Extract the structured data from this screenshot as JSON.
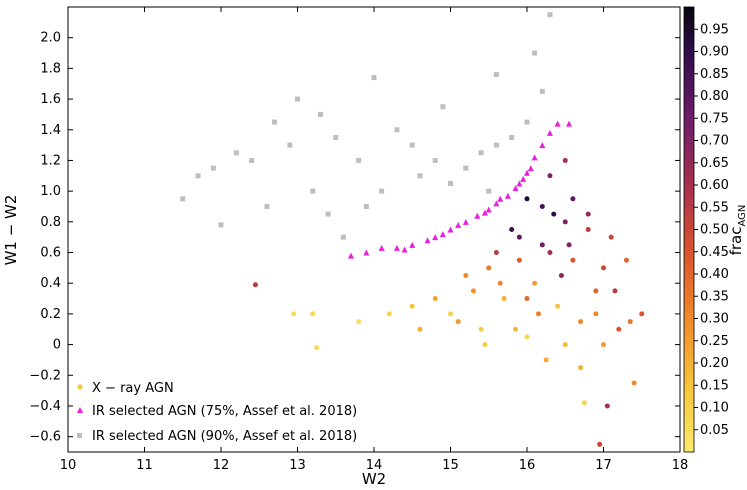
{
  "chart_data": {
    "type": "scatter",
    "xlabel": "W2",
    "ylabel": "W1 − W2",
    "xlim": [
      10,
      18
    ],
    "ylim": [
      -0.7,
      2.2
    ],
    "x_ticks": [
      10,
      11,
      12,
      13,
      14,
      15,
      16,
      17,
      18
    ],
    "y_ticks": [
      -0.6,
      -0.4,
      -0.2,
      0,
      0.2,
      0.4,
      0.6,
      0.8,
      1.0,
      1.2,
      1.4,
      1.6,
      1.8,
      2.0
    ],
    "x_tick_labels": [
      "10",
      "11",
      "12",
      "13",
      "14",
      "15",
      "16",
      "17",
      "18"
    ],
    "y_tick_labels": [
      "−0.6",
      "−0.4",
      "−0.2",
      "0",
      "0.2",
      "0.4",
      "0.6",
      "0.8",
      "1.0",
      "1.2",
      "1.4",
      "1.6",
      "1.8",
      "2.0"
    ],
    "grid": false,
    "legend_position": "lower-left",
    "colorbar": {
      "label": "frac_AGN",
      "label_main": "frac",
      "label_sub": "AGN",
      "ticks": [
        0.05,
        0.1,
        0.15,
        0.2,
        0.25,
        0.3,
        0.35,
        0.4,
        0.45,
        0.5,
        0.55,
        0.6,
        0.65,
        0.7,
        0.75,
        0.8,
        0.85,
        0.9,
        0.95
      ],
      "tick_labels": [
        "0.05",
        "0.10",
        "0.15",
        "0.20",
        "0.25",
        "0.30",
        "0.35",
        "0.40",
        "0.45",
        "0.50",
        "0.55",
        "0.60",
        "0.65",
        "0.70",
        "0.75",
        "0.80",
        "0.85",
        "0.90",
        "0.95"
      ],
      "range": [
        0.0,
        1.0
      ],
      "colormap": "inferno_r"
    },
    "series": [
      {
        "name": "X − ray AGN",
        "marker": "circle",
        "color": "#f0c040",
        "color_by": "frac_AGN",
        "points": [
          [
            16.0,
            0.95,
            0.93
          ],
          [
            16.2,
            0.9,
            0.85
          ],
          [
            16.5,
            0.8,
            0.7
          ],
          [
            16.8,
            0.75,
            0.55
          ],
          [
            15.9,
            0.7,
            0.8
          ],
          [
            16.3,
            0.6,
            0.6
          ],
          [
            16.6,
            0.55,
            0.45
          ],
          [
            17.0,
            0.5,
            0.5
          ],
          [
            15.5,
            0.5,
            0.35
          ],
          [
            15.2,
            0.45,
            0.3
          ],
          [
            16.1,
            0.4,
            0.25
          ],
          [
            16.9,
            0.35,
            0.4
          ],
          [
            15.7,
            0.3,
            0.2
          ],
          [
            16.4,
            0.25,
            0.15
          ],
          [
            15.0,
            0.2,
            0.1
          ],
          [
            16.7,
            0.15,
            0.3
          ],
          [
            15.4,
            0.1,
            0.12
          ],
          [
            16.0,
            0.05,
            0.08
          ],
          [
            16.5,
            0.0,
            0.18
          ],
          [
            17.2,
            0.1,
            0.45
          ],
          [
            15.8,
            0.75,
            0.88
          ],
          [
            16.2,
            0.65,
            0.75
          ],
          [
            15.3,
            0.35,
            0.28
          ],
          [
            14.8,
            0.3,
            0.22
          ],
          [
            14.5,
            0.25,
            0.15
          ],
          [
            14.2,
            0.2,
            0.1
          ],
          [
            13.8,
            0.15,
            0.05
          ],
          [
            13.2,
            0.2,
            0.08
          ],
          [
            12.95,
            0.2,
            0.06
          ],
          [
            13.25,
            -0.02,
            0.07
          ],
          [
            12.45,
            0.39,
            0.55
          ],
          [
            16.6,
            0.95,
            0.78
          ],
          [
            16.8,
            0.85,
            0.65
          ],
          [
            17.1,
            0.7,
            0.5
          ],
          [
            17.3,
            0.55,
            0.4
          ],
          [
            16.9,
            0.2,
            0.3
          ],
          [
            17.0,
            0.0,
            0.25
          ],
          [
            16.7,
            -0.15,
            0.2
          ],
          [
            16.95,
            -0.65,
            0.5
          ],
          [
            16.75,
            -0.38,
            0.1
          ],
          [
            17.05,
            -0.4,
            0.6
          ],
          [
            17.4,
            -0.25,
            0.3
          ],
          [
            17.5,
            0.2,
            0.45
          ],
          [
            16.3,
            1.1,
            0.72
          ],
          [
            16.5,
            1.2,
            0.6
          ],
          [
            15.6,
            0.6,
            0.55
          ],
          [
            15.9,
            0.55,
            0.42
          ],
          [
            16.0,
            0.3,
            0.38
          ],
          [
            15.1,
            0.15,
            0.26
          ],
          [
            14.6,
            0.1,
            0.2
          ],
          [
            16.45,
            0.45,
            0.66
          ],
          [
            16.15,
            0.2,
            0.33
          ],
          [
            15.85,
            0.1,
            0.18
          ],
          [
            15.45,
            0.0,
            0.12
          ],
          [
            16.25,
            -0.1,
            0.22
          ],
          [
            17.15,
            0.35,
            0.55
          ],
          [
            17.35,
            0.15,
            0.35
          ],
          [
            16.35,
            0.85,
            0.9
          ],
          [
            16.55,
            0.65,
            0.72
          ],
          [
            15.65,
            0.4,
            0.32
          ]
        ]
      },
      {
        "name": "IR selected AGN (75%, Assef et al. 2018)",
        "marker": "triangle",
        "color": "#e81ee0",
        "points": [
          [
            13.7,
            0.58
          ],
          [
            13.9,
            0.6
          ],
          [
            14.1,
            0.63
          ],
          [
            14.3,
            0.63
          ],
          [
            14.5,
            0.65
          ],
          [
            14.7,
            0.68
          ],
          [
            14.9,
            0.72
          ],
          [
            15.0,
            0.75
          ],
          [
            15.2,
            0.8
          ],
          [
            15.35,
            0.84
          ],
          [
            15.5,
            0.88
          ],
          [
            15.6,
            0.92
          ],
          [
            15.75,
            0.97
          ],
          [
            15.85,
            1.02
          ],
          [
            15.95,
            1.08
          ],
          [
            16.05,
            1.15
          ],
          [
            16.1,
            1.22
          ],
          [
            16.2,
            1.3
          ],
          [
            16.3,
            1.38
          ],
          [
            16.4,
            1.44
          ],
          [
            16.55,
            1.44
          ],
          [
            14.8,
            0.7
          ],
          [
            15.1,
            0.78
          ],
          [
            15.45,
            0.86
          ],
          [
            15.65,
            0.95
          ],
          [
            15.9,
            1.05
          ],
          [
            16.0,
            1.12
          ],
          [
            14.4,
            0.62
          ]
        ]
      },
      {
        "name": "IR selected AGN (90%, Assef et al. 2018)",
        "marker": "square",
        "color": "#c0bcc0",
        "points": [
          [
            11.5,
            0.95
          ],
          [
            11.7,
            1.1
          ],
          [
            11.9,
            1.15
          ],
          [
            12.0,
            0.78
          ],
          [
            12.2,
            1.25
          ],
          [
            12.4,
            1.2
          ],
          [
            12.7,
            1.45
          ],
          [
            12.9,
            1.3
          ],
          [
            13.0,
            1.6
          ],
          [
            13.2,
            1.0
          ],
          [
            13.3,
            1.5
          ],
          [
            13.5,
            1.35
          ],
          [
            13.6,
            0.7
          ],
          [
            13.8,
            1.2
          ],
          [
            14.0,
            1.74
          ],
          [
            14.1,
            1.0
          ],
          [
            14.3,
            1.4
          ],
          [
            14.5,
            1.3
          ],
          [
            14.6,
            1.1
          ],
          [
            14.8,
            1.2
          ],
          [
            15.0,
            1.05
          ],
          [
            15.2,
            1.15
          ],
          [
            15.4,
            1.25
          ],
          [
            15.5,
            1.0
          ],
          [
            15.6,
            1.3
          ],
          [
            15.8,
            1.35
          ],
          [
            16.0,
            1.45
          ],
          [
            16.1,
            1.9
          ],
          [
            16.3,
            2.15
          ],
          [
            16.2,
            1.65
          ],
          [
            15.6,
            1.76
          ],
          [
            14.9,
            1.55
          ],
          [
            13.4,
            0.85
          ],
          [
            12.6,
            0.9
          ],
          [
            13.9,
            0.9
          ]
        ]
      }
    ]
  }
}
